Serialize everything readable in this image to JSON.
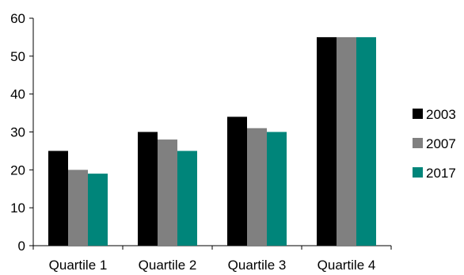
{
  "chart_data": {
    "type": "bar",
    "title": "",
    "xlabel": "",
    "ylabel": "",
    "categories": [
      "Quartile 1",
      "Quartile 2",
      "Quartile 3",
      "Quartile 4"
    ],
    "series": [
      {
        "name": "2003",
        "values": [
          25,
          30,
          34,
          55
        ],
        "color": "#000000"
      },
      {
        "name": "2007",
        "values": [
          20,
          28,
          31,
          55
        ],
        "color": "#808080"
      },
      {
        "name": "2017",
        "values": [
          19,
          25,
          30,
          55
        ],
        "color": "#00857A"
      }
    ],
    "ylim": [
      0,
      60
    ],
    "yticks": [
      0,
      10,
      20,
      30,
      40,
      50,
      60
    ],
    "grid": false,
    "legend_position": "right"
  }
}
